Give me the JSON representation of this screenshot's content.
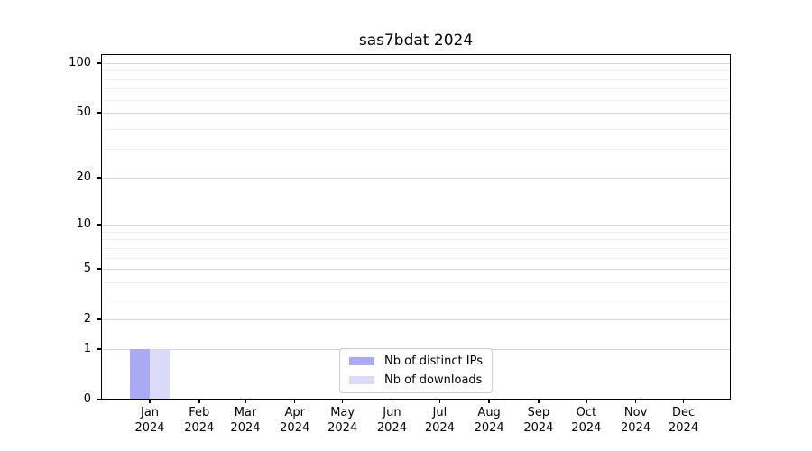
{
  "chart_data": {
    "type": "bar",
    "title": "sas7bdat 2024",
    "categories": [
      "Jan",
      "Feb",
      "Mar",
      "Apr",
      "May",
      "Jun",
      "Jul",
      "Aug",
      "Sep",
      "Oct",
      "Nov",
      "Dec"
    ],
    "year_label": "2024",
    "series": [
      {
        "name": "Nb of distinct IPs",
        "color": "#a9a9f4",
        "values": [
          1,
          0,
          0,
          0,
          0,
          0,
          0,
          0,
          0,
          0,
          0,
          0
        ]
      },
      {
        "name": "Nb of downloads",
        "color": "#dbdbf9",
        "values": [
          1,
          0,
          0,
          0,
          0,
          0,
          0,
          0,
          0,
          0,
          0,
          0
        ]
      }
    ],
    "y_scale": "log1p",
    "y_major_ticks": [
      0,
      1,
      2,
      5,
      10,
      20,
      50,
      100
    ],
    "y_minor_ticks": [
      3,
      4,
      6,
      7,
      8,
      9,
      30,
      40,
      60,
      70,
      80,
      90
    ],
    "ylim": [
      0,
      113
    ],
    "xlabel": "",
    "ylabel": "",
    "grid": true,
    "legend_position": "lower center",
    "month_day_offsets": [
      0,
      31,
      60,
      91,
      121,
      152,
      182,
      213,
      244,
      274,
      305,
      335
    ],
    "xlim_days": [
      -30.6,
      364.7
    ]
  }
}
